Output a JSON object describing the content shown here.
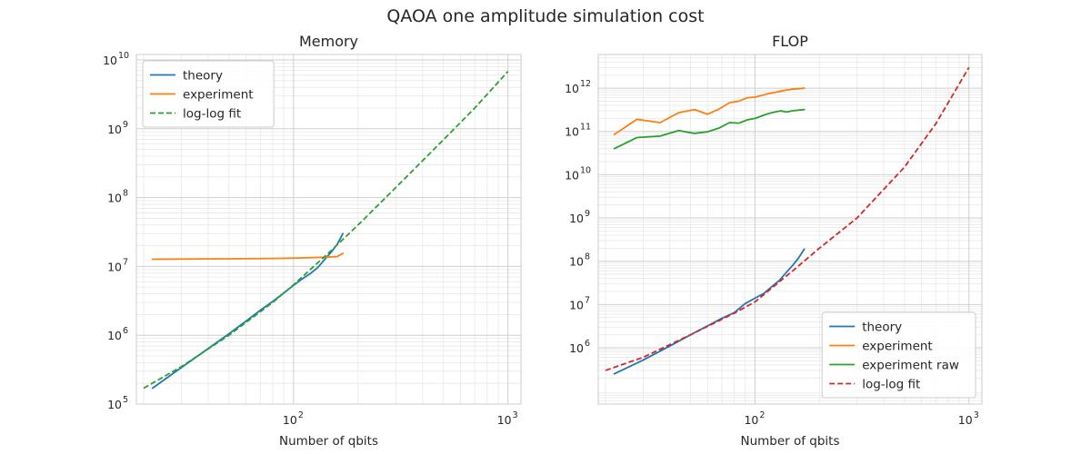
{
  "figure_title": "QAOA one amplitude simulation cost",
  "colors": {
    "blue": "#1f77b4",
    "orange": "#ff7f0e",
    "green": "#2ca02c",
    "red": "#d62728",
    "grid_major": "#cfcfcf",
    "grid_minor": "#e8e8e8",
    "frame": "#cccccc"
  },
  "chart_data": [
    {
      "type": "line",
      "title": "Memory",
      "xlabel": "Number of qbits",
      "ylabel": "",
      "xscale": "log",
      "yscale": "log",
      "xlim": [
        18.5,
        1150
      ],
      "ylim": [
        100000,
        12000000000
      ],
      "xticks": [
        {
          "base": "10",
          "exp": "2",
          "value": 100
        },
        {
          "base": "10",
          "exp": "3",
          "value": 1000
        }
      ],
      "yticks": [
        {
          "base": "10",
          "exp": "5",
          "value": 100000
        },
        {
          "base": "10",
          "exp": "6",
          "value": 1000000
        },
        {
          "base": "10",
          "exp": "7",
          "value": 10000000
        },
        {
          "base": "10",
          "exp": "8",
          "value": 100000000
        },
        {
          "base": "10",
          "exp": "9",
          "value": 1000000000
        },
        {
          "base": "10",
          "exp": "10",
          "value": 10000000000
        }
      ],
      "grid": true,
      "legend_position": "upper-left",
      "series": [
        {
          "name": "theory",
          "color": "#1f77b4",
          "dash": "solid",
          "x": [
            22,
            30,
            40,
            50,
            60,
            70,
            80,
            90,
            100,
            110,
            120,
            130,
            140,
            150,
            160,
            170
          ],
          "y": [
            170000,
            340000,
            640000,
            1050000,
            1600000,
            2300000,
            3100000,
            4100000,
            5300000,
            6600000,
            7900000,
            9700000,
            12700000,
            16200000,
            21000000,
            30000000
          ]
        },
        {
          "name": "experiment",
          "color": "#ff7f0e",
          "dash": "solid",
          "x": [
            22,
            40,
            60,
            80,
            100,
            120,
            140,
            160,
            170
          ],
          "y": [
            12700000,
            12850000,
            12950000,
            13050000,
            13200000,
            13400000,
            13600000,
            13900000,
            15500000
          ]
        },
        {
          "name": "log-log fit",
          "color": "#2ca02c",
          "dash": "dashed",
          "x": [
            20,
            30,
            50,
            80,
            100,
            150,
            200,
            300,
            500,
            700,
            1000
          ],
          "y": [
            170000,
            350000,
            1000000,
            3000000,
            5400000,
            17000000,
            40000000,
            140000000,
            690000000,
            2000000000,
            6800000000
          ]
        }
      ]
    },
    {
      "type": "line",
      "title": "FLOP",
      "xlabel": "Number of qbits",
      "ylabel": "",
      "xscale": "log",
      "yscale": "log",
      "xlim": [
        18.5,
        1150
      ],
      "ylim": [
        50000,
        6000000000000
      ],
      "xticks": [
        {
          "base": "10",
          "exp": "2",
          "value": 100
        },
        {
          "base": "10",
          "exp": "3",
          "value": 1000
        }
      ],
      "yticks": [
        {
          "base": "10",
          "exp": "6",
          "value": 1000000
        },
        {
          "base": "10",
          "exp": "7",
          "value": 10000000
        },
        {
          "base": "10",
          "exp": "8",
          "value": 100000000
        },
        {
          "base": "10",
          "exp": "9",
          "value": 1000000000
        },
        {
          "base": "10",
          "exp": "10",
          "value": 10000000000
        },
        {
          "base": "10",
          "exp": "11",
          "value": 100000000000
        },
        {
          "base": "10",
          "exp": "12",
          "value": 1000000000000
        }
      ],
      "grid": true,
      "legend_position": "lower-right",
      "series": [
        {
          "name": "theory",
          "color": "#1f77b4",
          "dash": "solid",
          "x": [
            22,
            30,
            40,
            50,
            60,
            70,
            80,
            90,
            100,
            110,
            120,
            130,
            140,
            150,
            160,
            170
          ],
          "y": [
            250000,
            520000,
            1100000,
            2000000,
            3200000,
            4800000,
            6500000,
            10500000,
            14000000,
            18000000,
            26000000,
            36000000,
            55000000,
            80000000,
            120000000,
            190000000
          ]
        },
        {
          "name": "experiment",
          "color": "#ff7f0e",
          "dash": "solid",
          "x": [
            22,
            28,
            36,
            44,
            52,
            60,
            68,
            76,
            84,
            92,
            100,
            108,
            116,
            124,
            132,
            140,
            150,
            160,
            170
          ],
          "y": [
            85000000000,
            190000000000,
            160000000000,
            270000000000,
            320000000000,
            250000000000,
            330000000000,
            460000000000,
            500000000000,
            600000000000,
            620000000000,
            680000000000,
            750000000000,
            800000000000,
            850000000000,
            900000000000,
            950000000000,
            970000000000,
            1000000000000
          ]
        },
        {
          "name": "experiment raw",
          "color": "#2ca02c",
          "dash": "solid",
          "x": [
            22,
            28,
            36,
            44,
            52,
            60,
            68,
            76,
            84,
            92,
            100,
            108,
            116,
            124,
            132,
            140,
            150,
            160,
            170
          ],
          "y": [
            40000000000,
            72000000000,
            78000000000,
            105000000000,
            90000000000,
            98000000000,
            120000000000,
            160000000000,
            155000000000,
            185000000000,
            200000000000,
            230000000000,
            260000000000,
            280000000000,
            300000000000,
            280000000000,
            300000000000,
            310000000000,
            320000000000
          ]
        },
        {
          "name": "log-log fit",
          "color": "#d62728",
          "dash": "dashed",
          "x": [
            20,
            30,
            50,
            80,
            100,
            150,
            200,
            300,
            500,
            700,
            1000
          ],
          "y": [
            300000,
            600000,
            2000000,
            6300000,
            11500000,
            60000000,
            200000000,
            1000000000,
            15000000000,
            150000000000,
            3000000000000
          ]
        }
      ]
    }
  ]
}
